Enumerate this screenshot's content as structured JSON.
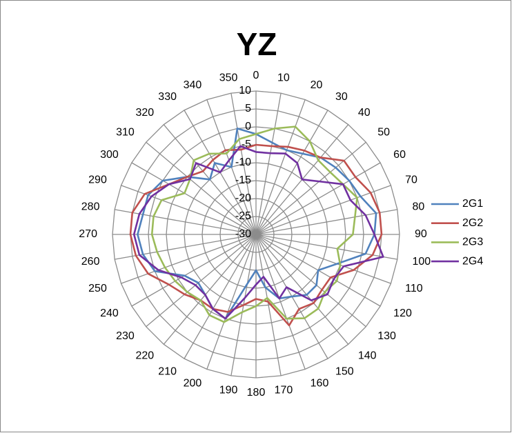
{
  "chart_data": {
    "type": "radar",
    "title": "YZ",
    "categories": [
      0,
      10,
      20,
      30,
      40,
      50,
      60,
      70,
      80,
      90,
      100,
      110,
      120,
      130,
      140,
      150,
      160,
      170,
      180,
      190,
      200,
      210,
      220,
      230,
      240,
      250,
      260,
      270,
      280,
      290,
      300,
      310,
      320,
      330,
      340,
      350
    ],
    "rlim": [
      -30,
      10
    ],
    "rticks": [
      -30,
      -25,
      -20,
      -15,
      -10,
      -5,
      0,
      5,
      10
    ],
    "grid": true,
    "legend": "right",
    "series": [
      {
        "name": "2G1",
        "color": "#4f81bd",
        "values": [
          -2,
          -4,
          -5,
          -4,
          -2,
          -1,
          0,
          1,
          4,
          3,
          1,
          -6,
          -10,
          -8,
          -8,
          -10,
          -11,
          -15,
          -20,
          -16,
          -5,
          -6,
          -8,
          -9,
          -7,
          0,
          2,
          3,
          2,
          2,
          0,
          -5,
          -10,
          -7,
          -10,
          0
        ]
      },
      {
        "name": "2G2",
        "color": "#c0504d",
        "values": [
          -5,
          -5,
          -4,
          -3,
          -2,
          2,
          2,
          4,
          5,
          5,
          3,
          -1,
          -6,
          -6,
          -5,
          -6,
          -3,
          -11,
          -12,
          -10,
          -7,
          -6,
          -6,
          -4,
          -2,
          2,
          4,
          5,
          5,
          3,
          -2,
          -5,
          -7,
          -6,
          -5,
          -6
        ]
      },
      {
        "name": "2G3",
        "color": "#9bbb59",
        "values": [
          -2,
          0,
          2,
          0,
          -3,
          -3,
          -2,
          0,
          -2,
          -3,
          -7,
          -5,
          -4,
          -5,
          -3,
          -3,
          -5,
          -12,
          -10,
          -8,
          -4,
          -4,
          -6,
          -5,
          -4,
          -3,
          -2,
          -1,
          -1,
          -2,
          -7,
          -6,
          -3,
          -4,
          -6,
          -3
        ]
      },
      {
        "name": "2G4",
        "color": "#7030a0",
        "values": [
          -7,
          -7,
          -6,
          -7,
          -10,
          -7,
          -2,
          -2,
          1,
          3,
          6,
          -4,
          -5,
          -4,
          -6,
          -13,
          -11,
          -18,
          -16,
          -12,
          -5,
          -6,
          -8,
          -8,
          -6,
          -1,
          3,
          4,
          3,
          1,
          -2,
          -6,
          -4,
          -10,
          -8,
          -5
        ]
      }
    ]
  }
}
